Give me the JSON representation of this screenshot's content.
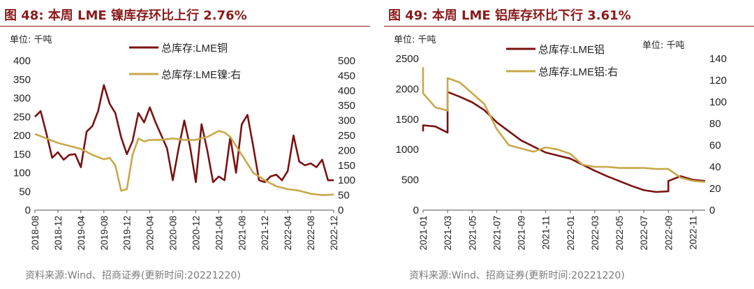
{
  "colors": {
    "title": "#8b1a1a",
    "series_dark": "#7a1212",
    "series_gold": "#c8a84a",
    "source": "#7a7a7a"
  },
  "chart_data": [
    {
      "type": "line",
      "title": "图 48:  本周 LME 镍库存环比上行 2.76%",
      "unit_label": "单位:  千吨",
      "source": "资料来源:Wind、招商证券(更新时间:20221220)",
      "y_left": {
        "min": 0,
        "max": 400,
        "ticks": [
          0,
          50,
          100,
          150,
          200,
          250,
          300,
          350,
          400
        ]
      },
      "y_right": {
        "min": 0,
        "max": 500,
        "ticks": [
          0,
          50,
          100,
          150,
          200,
          250,
          300,
          350,
          400,
          450,
          500
        ]
      },
      "x_range": [
        "2018-08",
        "2022-12"
      ],
      "x_ticks": [
        "2018-08",
        "2018-12",
        "2019-04",
        "2019-08",
        "2019-12",
        "2020-04",
        "2020-08",
        "2020-12",
        "2021-04",
        "2021-08",
        "2021-12",
        "2022-04",
        "2022-08",
        "2022-12"
      ],
      "series": [
        {
          "name": "总库存:LME铜",
          "axis": "left",
          "color": "#7a1212",
          "x": [
            "2018-08",
            "2018-09",
            "2018-10",
            "2018-11",
            "2018-12",
            "2019-01",
            "2019-02",
            "2019-03",
            "2019-04",
            "2019-05",
            "2019-06",
            "2019-07",
            "2019-08",
            "2019-09",
            "2019-10",
            "2019-11",
            "2019-12",
            "2020-01",
            "2020-02",
            "2020-03",
            "2020-04",
            "2020-05",
            "2020-06",
            "2020-07",
            "2020-08",
            "2020-09",
            "2020-10",
            "2020-11",
            "2020-12",
            "2021-01",
            "2021-02",
            "2021-03",
            "2021-04",
            "2021-05",
            "2021-06",
            "2021-07",
            "2021-08",
            "2021-09",
            "2021-10",
            "2021-11",
            "2021-12",
            "2022-01",
            "2022-02",
            "2022-03",
            "2022-04",
            "2022-05",
            "2022-06",
            "2022-07",
            "2022-08",
            "2022-09",
            "2022-10",
            "2022-11",
            "2022-12"
          ],
          "values": [
            250,
            265,
            205,
            140,
            155,
            135,
            148,
            150,
            115,
            210,
            225,
            265,
            335,
            285,
            260,
            195,
            150,
            185,
            260,
            235,
            275,
            235,
            200,
            165,
            80,
            165,
            240,
            170,
            75,
            230,
            160,
            75,
            90,
            80,
            195,
            100,
            230,
            255,
            170,
            80,
            75,
            90,
            95,
            80,
            105,
            200,
            130,
            120,
            125,
            115,
            135,
            80,
            80
          ]
        },
        {
          "name": "总库存:LME镍:右",
          "axis": "right",
          "color": "#c8a84a",
          "x": [
            "2018-08",
            "2018-10",
            "2018-12",
            "2019-02",
            "2019-04",
            "2019-06",
            "2019-08",
            "2019-09",
            "2019-10",
            "2019-11",
            "2019-12",
            "2020-01",
            "2020-02",
            "2020-03",
            "2020-04",
            "2020-06",
            "2020-08",
            "2020-10",
            "2020-12",
            "2021-02",
            "2021-04",
            "2021-05",
            "2021-06",
            "2021-08",
            "2021-10",
            "2021-12",
            "2022-02",
            "2022-04",
            "2022-06",
            "2022-08",
            "2022-10",
            "2022-12"
          ],
          "values": [
            255,
            240,
            225,
            215,
            205,
            185,
            170,
            175,
            150,
            65,
            70,
            185,
            240,
            230,
            235,
            235,
            240,
            235,
            235,
            245,
            265,
            260,
            245,
            185,
            125,
            100,
            80,
            70,
            65,
            55,
            50,
            52
          ]
        }
      ]
    },
    {
      "type": "line",
      "title": "图 49:  本周 LME 铝库存环比下行 3.61%",
      "unit_label": "单位:  千吨",
      "unit_label_right": "单位:  千吨",
      "source": "资料来源:Wind、招商证券(更新时间:20221220)",
      "y_left": {
        "min": 0,
        "max": 2500,
        "ticks": [
          0,
          500,
          1000,
          1500,
          2000,
          2500
        ]
      },
      "y_right": {
        "min": 0,
        "max": 140,
        "ticks": [
          0,
          20,
          40,
          60,
          80,
          100,
          120,
          140
        ]
      },
      "x_range": [
        "2021-01",
        "2022-12"
      ],
      "x_ticks": [
        "2021-01",
        "2021-03",
        "2021-05",
        "2021-07",
        "2021-09",
        "2021-11",
        "2022-01",
        "2022-03",
        "2022-05",
        "2022-07",
        "2022-09",
        "2022-11"
      ],
      "series": [
        {
          "name": "总库存:LME铝",
          "axis": "left",
          "color": "#7a1212",
          "x": [
            "2021-01",
            "2021-01",
            "2021-02",
            "2021-03",
            "2021-03",
            "2021-04",
            "2021-05",
            "2021-06",
            "2021-07",
            "2021-08",
            "2021-09",
            "2021-10",
            "2021-11",
            "2021-12",
            "2022-01",
            "2022-02",
            "2022-03",
            "2022-04",
            "2022-05",
            "2022-06",
            "2022-07",
            "2022-08",
            "2022-09",
            "2022-09",
            "2022-10",
            "2022-11",
            "2022-12"
          ],
          "values": [
            1300,
            1400,
            1380,
            1280,
            1950,
            1870,
            1780,
            1650,
            1450,
            1300,
            1150,
            1050,
            950,
            900,
            850,
            750,
            650,
            560,
            480,
            400,
            330,
            300,
            310,
            480,
            560,
            500,
            480
          ]
        },
        {
          "name": "总库存:LME铝:右",
          "axis": "right",
          "color": "#c8a84a",
          "x": [
            "2021-01",
            "2021-01",
            "2021-02",
            "2021-03",
            "2021-03",
            "2021-04",
            "2021-05",
            "2021-06",
            "2021-07",
            "2021-08",
            "2021-09",
            "2021-10",
            "2021-11",
            "2021-12",
            "2022-01",
            "2022-02",
            "2022-03",
            "2022-04",
            "2022-05",
            "2022-06",
            "2022-07",
            "2022-08",
            "2022-09",
            "2022-10",
            "2022-11",
            "2022-12"
          ],
          "values": [
            132,
            108,
            95,
            92,
            122,
            118,
            108,
            98,
            75,
            60,
            57,
            54,
            58,
            56,
            52,
            42,
            40,
            40,
            39,
            39,
            39,
            38,
            38,
            30,
            27,
            26
          ]
        }
      ]
    }
  ]
}
